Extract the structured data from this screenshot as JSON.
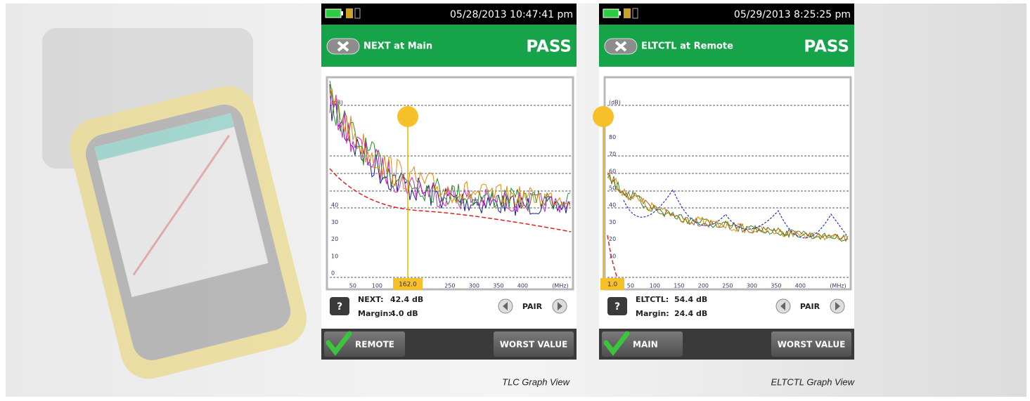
{
  "screens": [
    {
      "date": "05/28/2013 10:47:41 pm",
      "title": "NEXT at Main",
      "status": "PASS",
      "graph": {
        "y_unit": "(dB)",
        "y_labels": [
          "40",
          "30",
          "20",
          "10",
          "0"
        ],
        "x_unit": "(MHz)",
        "x_labels": [
          "50",
          "100",
          "250",
          "300",
          "350",
          "400"
        ],
        "marker": "162.0"
      },
      "readout": [
        {
          "label": "NEXT:",
          "value": "42.4 dB"
        },
        {
          "label": "Margin:",
          "value": "4.0 dB"
        }
      ],
      "help": "?",
      "pair": "PAIR",
      "left_button": "REMOTE",
      "right_button": "WORST VALUE",
      "caption": "TLC Graph View"
    },
    {
      "date": "05/29/2013 8:25:25 pm",
      "title": "ELTCTL at Remote",
      "status": "PASS",
      "graph": {
        "y_unit": "(dB)",
        "y_labels": [
          "80",
          "70",
          "60",
          "50",
          "40",
          "30",
          "20",
          "10"
        ],
        "x_unit": "(MHz)",
        "x_labels": [
          "50",
          "100",
          "150",
          "200",
          "250",
          "300",
          "350",
          "400"
        ],
        "marker": "1.0"
      },
      "readout": [
        {
          "label": "ELTCTL:",
          "value": "54.4 dB"
        },
        {
          "label": "Margin:",
          "value": "24.4 dB"
        }
      ],
      "help": "?",
      "pair": "PAIR",
      "left_button": "MAIN",
      "right_button": "WORST VALUE",
      "caption": "ELTCTL Graph View"
    }
  ]
}
